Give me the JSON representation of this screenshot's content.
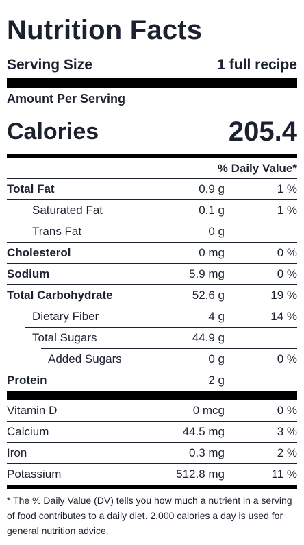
{
  "title": "Nutrition Facts",
  "serving": {
    "label": "Serving Size",
    "value": "1 full recipe"
  },
  "amount_per_serving": "Amount Per Serving",
  "calories": {
    "label": "Calories",
    "value": "205.4"
  },
  "daily_value_header": "% Daily Value*",
  "nutrients": [
    {
      "name": "Total Fat",
      "amount": "0.9 g",
      "dv": "1 %"
    },
    {
      "name": "Saturated Fat",
      "amount": "0.1 g",
      "dv": "1 %"
    },
    {
      "name": "Trans Fat",
      "amount": "0 g",
      "dv": ""
    },
    {
      "name": "Cholesterol",
      "amount": "0 mg",
      "dv": "0 %"
    },
    {
      "name": "Sodium",
      "amount": "5.9 mg",
      "dv": "0 %"
    },
    {
      "name": "Total Carbohydrate",
      "amount": "52.6 g",
      "dv": "19 %"
    },
    {
      "name": "Dietary Fiber",
      "amount": "4 g",
      "dv": "14 %"
    },
    {
      "name": "Total Sugars",
      "amount": "44.9 g",
      "dv": ""
    },
    {
      "name": "Added Sugars",
      "amount": "0 g",
      "dv": "0 %"
    },
    {
      "name": "Protein",
      "amount": "2 g",
      "dv": ""
    }
  ],
  "vitamins": [
    {
      "name": "Vitamin D",
      "amount": "0 mcg",
      "dv": "0 %"
    },
    {
      "name": "Calcium",
      "amount": "44.5 mg",
      "dv": "3 %"
    },
    {
      "name": "Iron",
      "amount": "0.3 mg",
      "dv": "2 %"
    },
    {
      "name": "Potassium",
      "amount": "512.8 mg",
      "dv": "11 %"
    }
  ],
  "footnote": "* The % Daily Value (DV) tells you how much a nutrient in a serving of food contributes to a daily diet. 2,000 calories a day is used for general nutrition advice."
}
